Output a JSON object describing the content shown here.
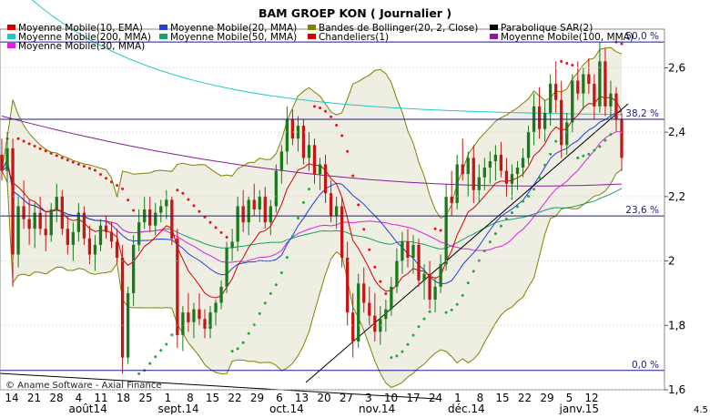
{
  "chart_data": {
    "type": "candlestick",
    "title": "BAM GROEP KON  ( Journalier )",
    "copyright": "© Aname Software - Axial Finance",
    "legend": {
      "placement": "top-left",
      "items": [
        {
          "label": "Moyenne Mobile(10, EMA)",
          "color": "#d40000"
        },
        {
          "label": "Moyenne Mobile(20, MMA)",
          "color": "#1f3fd6"
        },
        {
          "label": "Bandes de Bollinger(20, 2, Close)",
          "color": "#808000"
        },
        {
          "label": "Parabolique SAR(2)",
          "color": "#000000"
        },
        {
          "label": "Moyenne Mobile(200, MMA)",
          "color": "#22c8c8"
        },
        {
          "label": "Moyenne Mobile(50, MMA)",
          "color": "#16a06a"
        },
        {
          "label": "Chandeliers(1)",
          "color": "#d40000"
        },
        {
          "label": "Moyenne Mobile(100, MMA)",
          "color": "#8a1a9a"
        },
        {
          "label": "Moyenne Mobile(30, MMA)",
          "color": "#e020e0"
        }
      ]
    },
    "y_axis": {
      "position": "right",
      "ylim": [
        1.6,
        2.72
      ],
      "ticks": [
        2.6,
        2.4,
        2.2,
        2,
        1.8,
        1.6
      ],
      "tick_labels": [
        "2,6",
        "2,4",
        "2,2",
        "2",
        "1,8",
        "1,6"
      ]
    },
    "x_axis": {
      "day_labels": [
        "14",
        "21",
        "28",
        "4",
        "11",
        "18",
        "25",
        "1",
        "8",
        "15",
        "22",
        "29",
        "6",
        "13",
        "20",
        "27",
        "3",
        "10",
        "17",
        "24",
        "1",
        "8",
        "15",
        "22",
        "29",
        "5",
        "12"
      ],
      "month_labels": [
        {
          "label": "août14",
          "at": 3
        },
        {
          "label": "sept.14",
          "at": 7
        },
        {
          "label": "oct.14",
          "at": 12
        },
        {
          "label": "nov.14",
          "at": 16
        },
        {
          "label": "déc.14",
          "at": 20
        },
        {
          "label": "janv.15",
          "at": 25
        }
      ],
      "trailing_label": "4.5"
    },
    "fibonacci": [
      {
        "label": "50,0 %",
        "value": 2.68
      },
      {
        "label": "38,2 %",
        "value": 2.44
      },
      {
        "label": "23,6 %",
        "value": 2.14
      },
      {
        "label": "0,0 %",
        "value": 1.66
      }
    ],
    "candles": [
      [
        2.33,
        2.38,
        2.25,
        2.28
      ],
      [
        2.28,
        2.4,
        2.24,
        2.35
      ],
      [
        2.35,
        2.38,
        1.92,
        2.02
      ],
      [
        2.02,
        2.2,
        1.98,
        2.17
      ],
      [
        2.17,
        2.25,
        2.1,
        2.13
      ],
      [
        2.13,
        2.19,
        2.05,
        2.1
      ],
      [
        2.1,
        2.18,
        2.04,
        2.15
      ],
      [
        2.15,
        2.2,
        2.08,
        2.1
      ],
      [
        2.1,
        2.15,
        2.03,
        2.08
      ],
      [
        2.08,
        2.18,
        2.06,
        2.16
      ],
      [
        2.16,
        2.24,
        2.12,
        2.2
      ],
      [
        2.2,
        2.22,
        2.08,
        2.1
      ],
      [
        2.1,
        2.14,
        2.02,
        2.05
      ],
      [
        2.05,
        2.12,
        2.0,
        2.09
      ],
      [
        2.09,
        2.18,
        2.06,
        2.15
      ],
      [
        2.15,
        2.17,
        2.05,
        2.07
      ],
      [
        2.07,
        2.11,
        1.99,
        2.02
      ],
      [
        2.02,
        2.08,
        1.97,
        2.05
      ],
      [
        2.05,
        2.13,
        2.03,
        2.11
      ],
      [
        2.11,
        2.14,
        2.07,
        2.09
      ],
      [
        2.09,
        2.12,
        2.04,
        2.06
      ],
      [
        2.06,
        2.1,
        1.99,
        2.01
      ],
      [
        2.01,
        2.05,
        1.65,
        1.7
      ],
      [
        1.7,
        1.92,
        1.68,
        1.9
      ],
      [
        1.9,
        2.08,
        1.86,
        2.05
      ],
      [
        2.05,
        2.16,
        2.03,
        2.12
      ],
      [
        2.12,
        2.2,
        2.1,
        2.16
      ],
      [
        2.16,
        2.2,
        2.09,
        2.11
      ],
      [
        2.11,
        2.18,
        2.08,
        2.15
      ],
      [
        2.15,
        2.19,
        2.12,
        2.17
      ],
      [
        2.17,
        2.22,
        2.13,
        2.19
      ],
      [
        2.19,
        2.2,
        2.05,
        2.07
      ],
      [
        2.07,
        2.1,
        1.73,
        1.77
      ],
      [
        1.77,
        1.86,
        1.72,
        1.84
      ],
      [
        1.84,
        1.9,
        1.78,
        1.81
      ],
      [
        1.81,
        1.87,
        1.76,
        1.85
      ],
      [
        1.85,
        1.9,
        1.8,
        1.82
      ],
      [
        1.82,
        1.85,
        1.76,
        1.79
      ],
      [
        1.79,
        1.86,
        1.76,
        1.84
      ],
      [
        1.84,
        1.88,
        1.8,
        1.87
      ],
      [
        1.87,
        1.94,
        1.85,
        1.92
      ],
      [
        1.92,
        2.06,
        1.9,
        2.04
      ],
      [
        2.04,
        2.1,
        2.0,
        2.06
      ],
      [
        2.06,
        2.2,
        2.03,
        2.17
      ],
      [
        2.17,
        2.22,
        2.09,
        2.12
      ],
      [
        2.12,
        2.2,
        2.08,
        2.19
      ],
      [
        2.19,
        2.24,
        2.14,
        2.16
      ],
      [
        2.16,
        2.22,
        2.12,
        2.2
      ],
      [
        2.2,
        2.23,
        2.1,
        2.12
      ],
      [
        2.12,
        2.19,
        2.08,
        2.17
      ],
      [
        2.17,
        2.3,
        2.15,
        2.28
      ],
      [
        2.28,
        2.36,
        2.24,
        2.34
      ],
      [
        2.34,
        2.48,
        2.3,
        2.44
      ],
      [
        2.44,
        2.47,
        2.36,
        2.38
      ],
      [
        2.38,
        2.45,
        2.34,
        2.42
      ],
      [
        2.42,
        2.44,
        2.3,
        2.32
      ],
      [
        2.32,
        2.4,
        2.28,
        2.36
      ],
      [
        2.36,
        2.38,
        2.24,
        2.27
      ],
      [
        2.27,
        2.32,
        2.22,
        2.3
      ],
      [
        2.3,
        2.33,
        2.18,
        2.21
      ],
      [
        2.21,
        2.25,
        2.12,
        2.14
      ],
      [
        2.14,
        2.2,
        2.1,
        2.17
      ],
      [
        2.17,
        2.2,
        1.98,
        2.01
      ],
      [
        2.01,
        2.06,
        1.8,
        1.84
      ],
      [
        1.84,
        1.9,
        1.7,
        1.75
      ],
      [
        1.75,
        1.96,
        1.73,
        1.93
      ],
      [
        1.93,
        1.98,
        1.84,
        1.87
      ],
      [
        1.87,
        1.92,
        1.8,
        1.83
      ],
      [
        1.83,
        1.9,
        1.75,
        1.78
      ],
      [
        1.78,
        1.86,
        1.74,
        1.82
      ],
      [
        1.82,
        1.88,
        1.78,
        1.85
      ],
      [
        1.85,
        1.95,
        1.83,
        1.92
      ],
      [
        1.92,
        2.04,
        1.9,
        2.0
      ],
      [
        2.0,
        2.09,
        1.96,
        2.06
      ],
      [
        2.06,
        2.1,
        1.98,
        2.01
      ],
      [
        2.01,
        2.08,
        1.96,
        2.05
      ],
      [
        2.05,
        2.07,
        1.92,
        1.94
      ],
      [
        1.94,
        1.99,
        1.88,
        1.96
      ],
      [
        1.96,
        2.0,
        1.85,
        1.88
      ],
      [
        1.88,
        1.95,
        1.84,
        1.92
      ],
      [
        1.92,
        2.02,
        1.9,
        1.99
      ],
      [
        1.99,
        2.24,
        1.97,
        2.2
      ],
      [
        2.2,
        2.28,
        2.14,
        2.18
      ],
      [
        2.18,
        2.33,
        2.16,
        2.3
      ],
      [
        2.3,
        2.38,
        2.25,
        2.27
      ],
      [
        2.27,
        2.34,
        2.2,
        2.32
      ],
      [
        2.32,
        2.36,
        2.18,
        2.22
      ],
      [
        2.22,
        2.3,
        2.18,
        2.26
      ],
      [
        2.26,
        2.32,
        2.22,
        2.29
      ],
      [
        2.29,
        2.34,
        2.24,
        2.31
      ],
      [
        2.31,
        2.36,
        2.25,
        2.33
      ],
      [
        2.33,
        2.37,
        2.26,
        2.28
      ],
      [
        2.28,
        2.32,
        2.2,
        2.24
      ],
      [
        2.24,
        2.3,
        2.19,
        2.27
      ],
      [
        2.27,
        2.31,
        2.22,
        2.29
      ],
      [
        2.29,
        2.35,
        2.26,
        2.32
      ],
      [
        2.32,
        2.42,
        2.3,
        2.4
      ],
      [
        2.4,
        2.52,
        2.36,
        2.48
      ],
      [
        2.48,
        2.54,
        2.38,
        2.41
      ],
      [
        2.41,
        2.5,
        2.37,
        2.46
      ],
      [
        2.46,
        2.58,
        2.42,
        2.55
      ],
      [
        2.55,
        2.62,
        2.46,
        2.5
      ],
      [
        2.5,
        2.56,
        2.32,
        2.36
      ],
      [
        2.36,
        2.46,
        2.33,
        2.43
      ],
      [
        2.43,
        2.58,
        2.4,
        2.56
      ],
      [
        2.56,
        2.62,
        2.5,
        2.52
      ],
      [
        2.52,
        2.6,
        2.47,
        2.58
      ],
      [
        2.58,
        2.63,
        2.52,
        2.55
      ],
      [
        2.55,
        2.58,
        2.44,
        2.48
      ],
      [
        2.48,
        2.68,
        2.46,
        2.62
      ],
      [
        2.62,
        2.66,
        2.45,
        2.48
      ],
      [
        2.48,
        2.56,
        2.44,
        2.52
      ],
      [
        2.52,
        2.54,
        2.4,
        2.44
      ],
      [
        2.44,
        2.46,
        2.28,
        2.32
      ]
    ]
  }
}
